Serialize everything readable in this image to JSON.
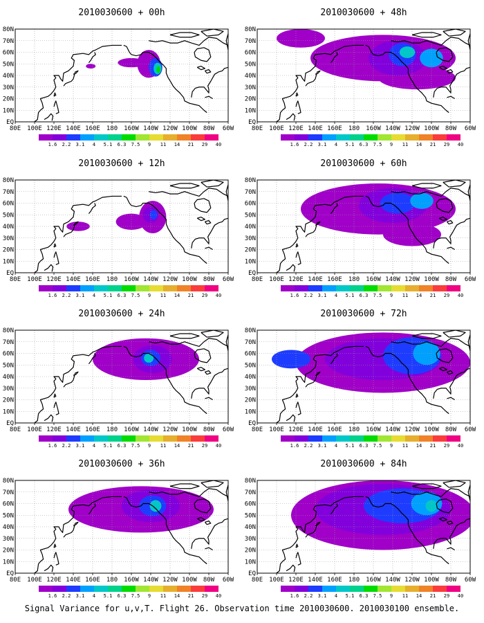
{
  "caption": "Signal Variance for u,v,T. Flight 26. Observation time 2010030600. 2010030100 ensemble.",
  "colors": {
    "coast": "#000000",
    "grid": "#9a9a9a"
  },
  "chart_data": [
    {
      "type": "heatmap",
      "title": "2010030600 + 00h",
      "x_ticks": [
        "80E",
        "100E",
        "120E",
        "140E",
        "160E",
        "180",
        "160W",
        "140W",
        "120W",
        "100W",
        "80W",
        "60W"
      ],
      "y_ticks": [
        "EQ",
        "10N",
        "20N",
        "30N",
        "40N",
        "50N",
        "60N",
        "70N",
        "80N"
      ],
      "colorbar": {
        "levels": [
          "1.6",
          "2.2",
          "3.1",
          "4",
          "5.1",
          "6.3",
          "7.5",
          "9",
          "11",
          "14",
          "21",
          "29",
          "40"
        ],
        "colors": [
          "#a000c8",
          "#8200dc",
          "#1e3cff",
          "#00a0ff",
          "#00c8c8",
          "#00d28c",
          "#00dc00",
          "#a0e632",
          "#e6dc32",
          "#e6af2d",
          "#f08228",
          "#fa3c3c",
          "#f00082"
        ]
      },
      "blobs": [
        {
          "lon": -142,
          "lat": 50,
          "rx": 12,
          "ry": 12,
          "level": 0
        },
        {
          "lon": -135,
          "lat": 47,
          "rx": 7,
          "ry": 8,
          "level": 2
        },
        {
          "lon": -133,
          "lat": 46,
          "rx": 4,
          "ry": 5,
          "level": 4
        },
        {
          "lon": -132,
          "lat": 45,
          "rx": 2,
          "ry": 3,
          "level": 6
        },
        {
          "lon": -160,
          "lat": 51,
          "rx": 14,
          "ry": 4,
          "level": 0
        },
        {
          "lon": 158,
          "lat": 48,
          "rx": 5,
          "ry": 2,
          "level": 0
        }
      ]
    },
    {
      "type": "heatmap",
      "title": "2010030600 + 48h",
      "x_ticks": [
        "80E",
        "100E",
        "120E",
        "140E",
        "160E",
        "180",
        "160W",
        "140W",
        "120W",
        "100W",
        "80W",
        "60W"
      ],
      "y_ticks": [
        "EQ",
        "10N",
        "20N",
        "30N",
        "40N",
        "50N",
        "60N",
        "70N",
        "80N"
      ],
      "colorbar": {
        "levels": [
          "1.6",
          "2.2",
          "3.1",
          "4",
          "5.1",
          "6.3",
          "7.5",
          "9",
          "11",
          "14",
          "21",
          "29",
          "40"
        ],
        "colors": [
          "#a000c8",
          "#8200dc",
          "#1e3cff",
          "#00a0ff",
          "#00c8c8",
          "#00d28c",
          "#00dc00",
          "#a0e632",
          "#e6dc32",
          "#e6af2d",
          "#f08228",
          "#fa3c3c",
          "#f00082"
        ]
      },
      "blobs": [
        {
          "lon": -150,
          "lat": 55,
          "rx": 75,
          "ry": 20,
          "level": 0
        },
        {
          "lon": 125,
          "lat": 72,
          "rx": 25,
          "ry": 8,
          "level": 0
        },
        {
          "lon": -115,
          "lat": 38,
          "rx": 40,
          "ry": 10,
          "level": 0
        },
        {
          "lon": -135,
          "lat": 55,
          "rx": 30,
          "ry": 15,
          "level": 1
        },
        {
          "lon": -130,
          "lat": 58,
          "rx": 14,
          "ry": 10,
          "level": 2
        },
        {
          "lon": -125,
          "lat": 60,
          "rx": 8,
          "ry": 5,
          "level": 4
        },
        {
          "lon": -100,
          "lat": 55,
          "rx": 12,
          "ry": 8,
          "level": 3
        }
      ]
    },
    {
      "type": "heatmap",
      "title": "2010030600 + 12h",
      "x_ticks": [
        "80E",
        "100E",
        "120E",
        "140E",
        "160E",
        "180",
        "160W",
        "140W",
        "120W",
        "100W",
        "80W",
        "60W"
      ],
      "y_ticks": [
        "EQ",
        "10N",
        "20N",
        "30N",
        "40N",
        "50N",
        "60N",
        "70N",
        "80N"
      ],
      "colorbar": {
        "levels": [
          "1.6",
          "2.2",
          "3.1",
          "4",
          "5.1",
          "6.3",
          "7.5",
          "9",
          "11",
          "14",
          "21",
          "29",
          "40"
        ],
        "colors": [
          "#a000c8",
          "#8200dc",
          "#1e3cff",
          "#00a0ff",
          "#00c8c8",
          "#00d28c",
          "#00dc00",
          "#a0e632",
          "#e6dc32",
          "#e6af2d",
          "#f08228",
          "#fa3c3c",
          "#f00082"
        ]
      },
      "blobs": [
        {
          "lon": -138,
          "lat": 48,
          "rx": 14,
          "ry": 14,
          "level": 0
        },
        {
          "lon": -160,
          "lat": 44,
          "rx": 16,
          "ry": 7,
          "level": 0
        },
        {
          "lon": 145,
          "lat": 40,
          "rx": 12,
          "ry": 4,
          "level": 0
        },
        {
          "lon": -140,
          "lat": 50,
          "rx": 8,
          "ry": 7,
          "level": 1
        },
        {
          "lon": -137,
          "lat": 50,
          "rx": 4,
          "ry": 4,
          "level": 2
        }
      ]
    },
    {
      "type": "heatmap",
      "title": "2010030600 + 60h",
      "x_ticks": [
        "80E",
        "100E",
        "120E",
        "140E",
        "160E",
        "180",
        "160W",
        "140W",
        "120W",
        "100W",
        "80W",
        "60W"
      ],
      "y_ticks": [
        "EQ",
        "10N",
        "20N",
        "30N",
        "40N",
        "50N",
        "60N",
        "70N",
        "80N"
      ],
      "colorbar": {
        "levels": [
          "1.6",
          "2.2",
          "3.1",
          "4",
          "5.1",
          "6.3",
          "7.5",
          "9",
          "11",
          "14",
          "21",
          "29",
          "40"
        ],
        "colors": [
          "#a000c8",
          "#8200dc",
          "#1e3cff",
          "#00a0ff",
          "#00c8c8",
          "#00d28c",
          "#00dc00",
          "#a0e632",
          "#e6dc32",
          "#e6af2d",
          "#f08228",
          "#fa3c3c",
          "#f00082"
        ]
      },
      "blobs": [
        {
          "lon": -155,
          "lat": 55,
          "rx": 80,
          "ry": 22,
          "level": 0
        },
        {
          "lon": -120,
          "lat": 33,
          "rx": 30,
          "ry": 10,
          "level": 0
        },
        {
          "lon": -140,
          "lat": 58,
          "rx": 35,
          "ry": 15,
          "level": 1
        },
        {
          "lon": -135,
          "lat": 60,
          "rx": 18,
          "ry": 9,
          "level": 2
        },
        {
          "lon": -110,
          "lat": 62,
          "rx": 12,
          "ry": 7,
          "level": 3
        }
      ]
    },
    {
      "type": "heatmap",
      "title": "2010030600 + 24h",
      "x_ticks": [
        "80E",
        "100E",
        "120E",
        "140E",
        "160E",
        "180",
        "160W",
        "140W",
        "120W",
        "100W",
        "80W",
        "60W"
      ],
      "y_ticks": [
        "EQ",
        "10N",
        "20N",
        "30N",
        "40N",
        "50N",
        "60N",
        "70N",
        "80N"
      ],
      "colorbar": {
        "levels": [
          "1.6",
          "2.2",
          "3.1",
          "4",
          "5.1",
          "6.3",
          "7.5",
          "9",
          "11",
          "14",
          "21",
          "29",
          "40"
        ],
        "colors": [
          "#a000c8",
          "#8200dc",
          "#1e3cff",
          "#00a0ff",
          "#00c8c8",
          "#00d28c",
          "#00dc00",
          "#a0e632",
          "#e6dc32",
          "#e6af2d",
          "#f08228",
          "#fa3c3c",
          "#f00082"
        ]
      },
      "blobs": [
        {
          "lon": -145,
          "lat": 55,
          "rx": 55,
          "ry": 18,
          "level": 0
        },
        {
          "lon": -138,
          "lat": 55,
          "rx": 20,
          "ry": 12,
          "level": 1
        },
        {
          "lon": -140,
          "lat": 56,
          "rx": 10,
          "ry": 7,
          "level": 2
        },
        {
          "lon": -142,
          "lat": 56,
          "rx": 5,
          "ry": 4,
          "level": 4
        }
      ]
    },
    {
      "type": "heatmap",
      "title": "2010030600 + 72h",
      "x_ticks": [
        "80E",
        "100E",
        "120E",
        "140E",
        "160E",
        "180",
        "160W",
        "140W",
        "120W",
        "100W",
        "80W",
        "60W"
      ],
      "y_ticks": [
        "EQ",
        "10N",
        "20N",
        "30N",
        "40N",
        "50N",
        "60N",
        "70N",
        "80N"
      ],
      "colorbar": {
        "levels": [
          "1.6",
          "2.2",
          "3.1",
          "4",
          "5.1",
          "6.3",
          "7.5",
          "9",
          "11",
          "14",
          "21",
          "29",
          "40"
        ],
        "colors": [
          "#a000c8",
          "#8200dc",
          "#1e3cff",
          "#00a0ff",
          "#00c8c8",
          "#00d28c",
          "#00dc00",
          "#a0e632",
          "#e6dc32",
          "#e6af2d",
          "#f08228",
          "#fa3c3c",
          "#f00082"
        ]
      },
      "blobs": [
        {
          "lon": -150,
          "lat": 52,
          "rx": 90,
          "ry": 26,
          "level": 0
        },
        {
          "lon": -150,
          "lat": 55,
          "rx": 60,
          "ry": 18,
          "level": 1
        },
        {
          "lon": -120,
          "lat": 58,
          "rx": 30,
          "ry": 16,
          "level": 2
        },
        {
          "lon": -105,
          "lat": 60,
          "rx": 14,
          "ry": 10,
          "level": 3
        },
        {
          "lon": 115,
          "lat": 55,
          "rx": 20,
          "ry": 8,
          "level": 2
        }
      ]
    },
    {
      "type": "heatmap",
      "title": "2010030600 + 36h",
      "x_ticks": [
        "80E",
        "100E",
        "120E",
        "140E",
        "160E",
        "180",
        "160W",
        "140W",
        "120W",
        "100W",
        "80W",
        "60W"
      ],
      "y_ticks": [
        "EQ",
        "10N",
        "20N",
        "30N",
        "40N",
        "50N",
        "60N",
        "70N",
        "80N"
      ],
      "colorbar": {
        "levels": [
          "1.6",
          "2.2",
          "3.1",
          "4",
          "5.1",
          "6.3",
          "7.5",
          "9",
          "11",
          "14",
          "21",
          "29",
          "40"
        ],
        "colors": [
          "#a000c8",
          "#8200dc",
          "#1e3cff",
          "#00a0ff",
          "#00c8c8",
          "#00d28c",
          "#00dc00",
          "#a0e632",
          "#e6dc32",
          "#e6af2d",
          "#f08228",
          "#fa3c3c",
          "#f00082"
        ]
      },
      "blobs": [
        {
          "lon": -150,
          "lat": 55,
          "rx": 75,
          "ry": 20,
          "level": 0
        },
        {
          "lon": -140,
          "lat": 58,
          "rx": 30,
          "ry": 14,
          "level": 1
        },
        {
          "lon": -138,
          "lat": 58,
          "rx": 14,
          "ry": 9,
          "level": 2
        },
        {
          "lon": -135,
          "lat": 58,
          "rx": 6,
          "ry": 5,
          "level": 4
        }
      ]
    },
    {
      "type": "heatmap",
      "title": "2010030600 + 84h",
      "x_ticks": [
        "80E",
        "100E",
        "120E",
        "140E",
        "160E",
        "180",
        "160W",
        "140W",
        "120W",
        "100W",
        "80W",
        "60W"
      ],
      "y_ticks": [
        "EQ",
        "10N",
        "20N",
        "30N",
        "40N",
        "50N",
        "60N",
        "70N",
        "80N"
      ],
      "colorbar": {
        "levels": [
          "1.6",
          "2.2",
          "3.1",
          "4",
          "5.1",
          "6.3",
          "7.5",
          "9",
          "11",
          "14",
          "21",
          "29",
          "40"
        ],
        "colors": [
          "#a000c8",
          "#8200dc",
          "#1e3cff",
          "#00a0ff",
          "#00c8c8",
          "#00d28c",
          "#00dc00",
          "#a0e632",
          "#e6dc32",
          "#e6af2d",
          "#f08228",
          "#fa3c3c",
          "#f00082"
        ]
      },
      "blobs": [
        {
          "lon": -150,
          "lat": 50,
          "rx": 95,
          "ry": 30,
          "level": 0
        },
        {
          "lon": -150,
          "lat": 55,
          "rx": 70,
          "ry": 22,
          "level": 1
        },
        {
          "lon": -130,
          "lat": 58,
          "rx": 40,
          "ry": 15,
          "level": 2
        },
        {
          "lon": -105,
          "lat": 60,
          "rx": 16,
          "ry": 10,
          "level": 3
        },
        {
          "lon": -100,
          "lat": 58,
          "rx": 6,
          "ry": 5,
          "level": 4
        }
      ]
    }
  ]
}
